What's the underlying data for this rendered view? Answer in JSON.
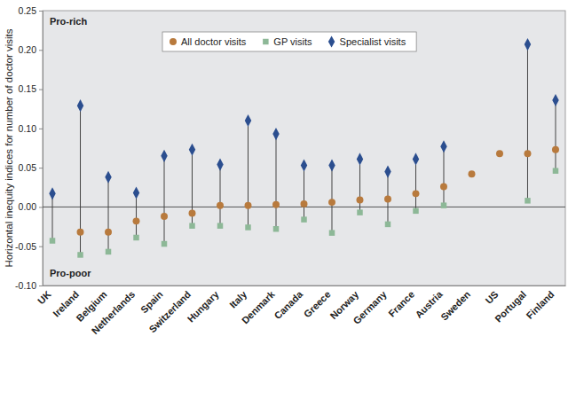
{
  "chart_data": {
    "type": "dot",
    "y_label": "Horizontal inequity indices for number of doctor visits",
    "annotations": [
      "Pro-rich",
      "Pro-poor"
    ],
    "categories": [
      "UK",
      "Ireland",
      "Belgium",
      "Netherlands",
      "Spain",
      "Switzerland",
      "Hungary",
      "Italy",
      "Denmark",
      "Canada",
      "Greece",
      "Norway",
      "Germany",
      "France",
      "Austria",
      "Sweden",
      "US",
      "Portugal",
      "Finland"
    ],
    "series": [
      {
        "name": "All doctor visits",
        "color": "#b87a3d",
        "marker": "circle",
        "values": [
          null,
          -0.032,
          -0.032,
          -0.018,
          -0.012,
          -0.008,
          0.002,
          0.002,
          0.003,
          0.004,
          0.006,
          0.009,
          0.01,
          0.017,
          0.026,
          0.042,
          0.068,
          0.068,
          0.073
        ]
      },
      {
        "name": "GP visits",
        "color": "#8db897",
        "marker": "square",
        "values": [
          -0.043,
          -0.061,
          -0.057,
          -0.039,
          -0.047,
          -0.024,
          -0.024,
          -0.026,
          -0.028,
          -0.016,
          -0.033,
          -0.007,
          -0.022,
          -0.005,
          0.002,
          null,
          null,
          0.008,
          0.046
        ]
      },
      {
        "name": "Specialist visits",
        "color": "#2b4e8f",
        "marker": "diamond",
        "values": [
          0.017,
          0.129,
          0.038,
          0.018,
          0.065,
          0.073,
          0.054,
          0.11,
          0.093,
          0.053,
          0.053,
          0.061,
          0.045,
          0.061,
          0.077,
          null,
          null,
          0.207,
          0.136
        ]
      }
    ],
    "ylim": [
      -0.1,
      0.25
    ],
    "yticks": [
      {
        "value": -0.1,
        "label": "-0.10"
      },
      {
        "value": -0.05,
        "label": "-0.05"
      },
      {
        "value": 0,
        "label": "0.00"
      },
      {
        "value": 0.05,
        "label": "0.05"
      },
      {
        "value": 0.1,
        "label": "0.10"
      },
      {
        "value": 0.15,
        "label": "0.15"
      },
      {
        "value": 0.2,
        "label": "0.20"
      },
      {
        "value": 0.25,
        "label": "0.25"
      }
    ],
    "grid": false,
    "legend": "top"
  }
}
